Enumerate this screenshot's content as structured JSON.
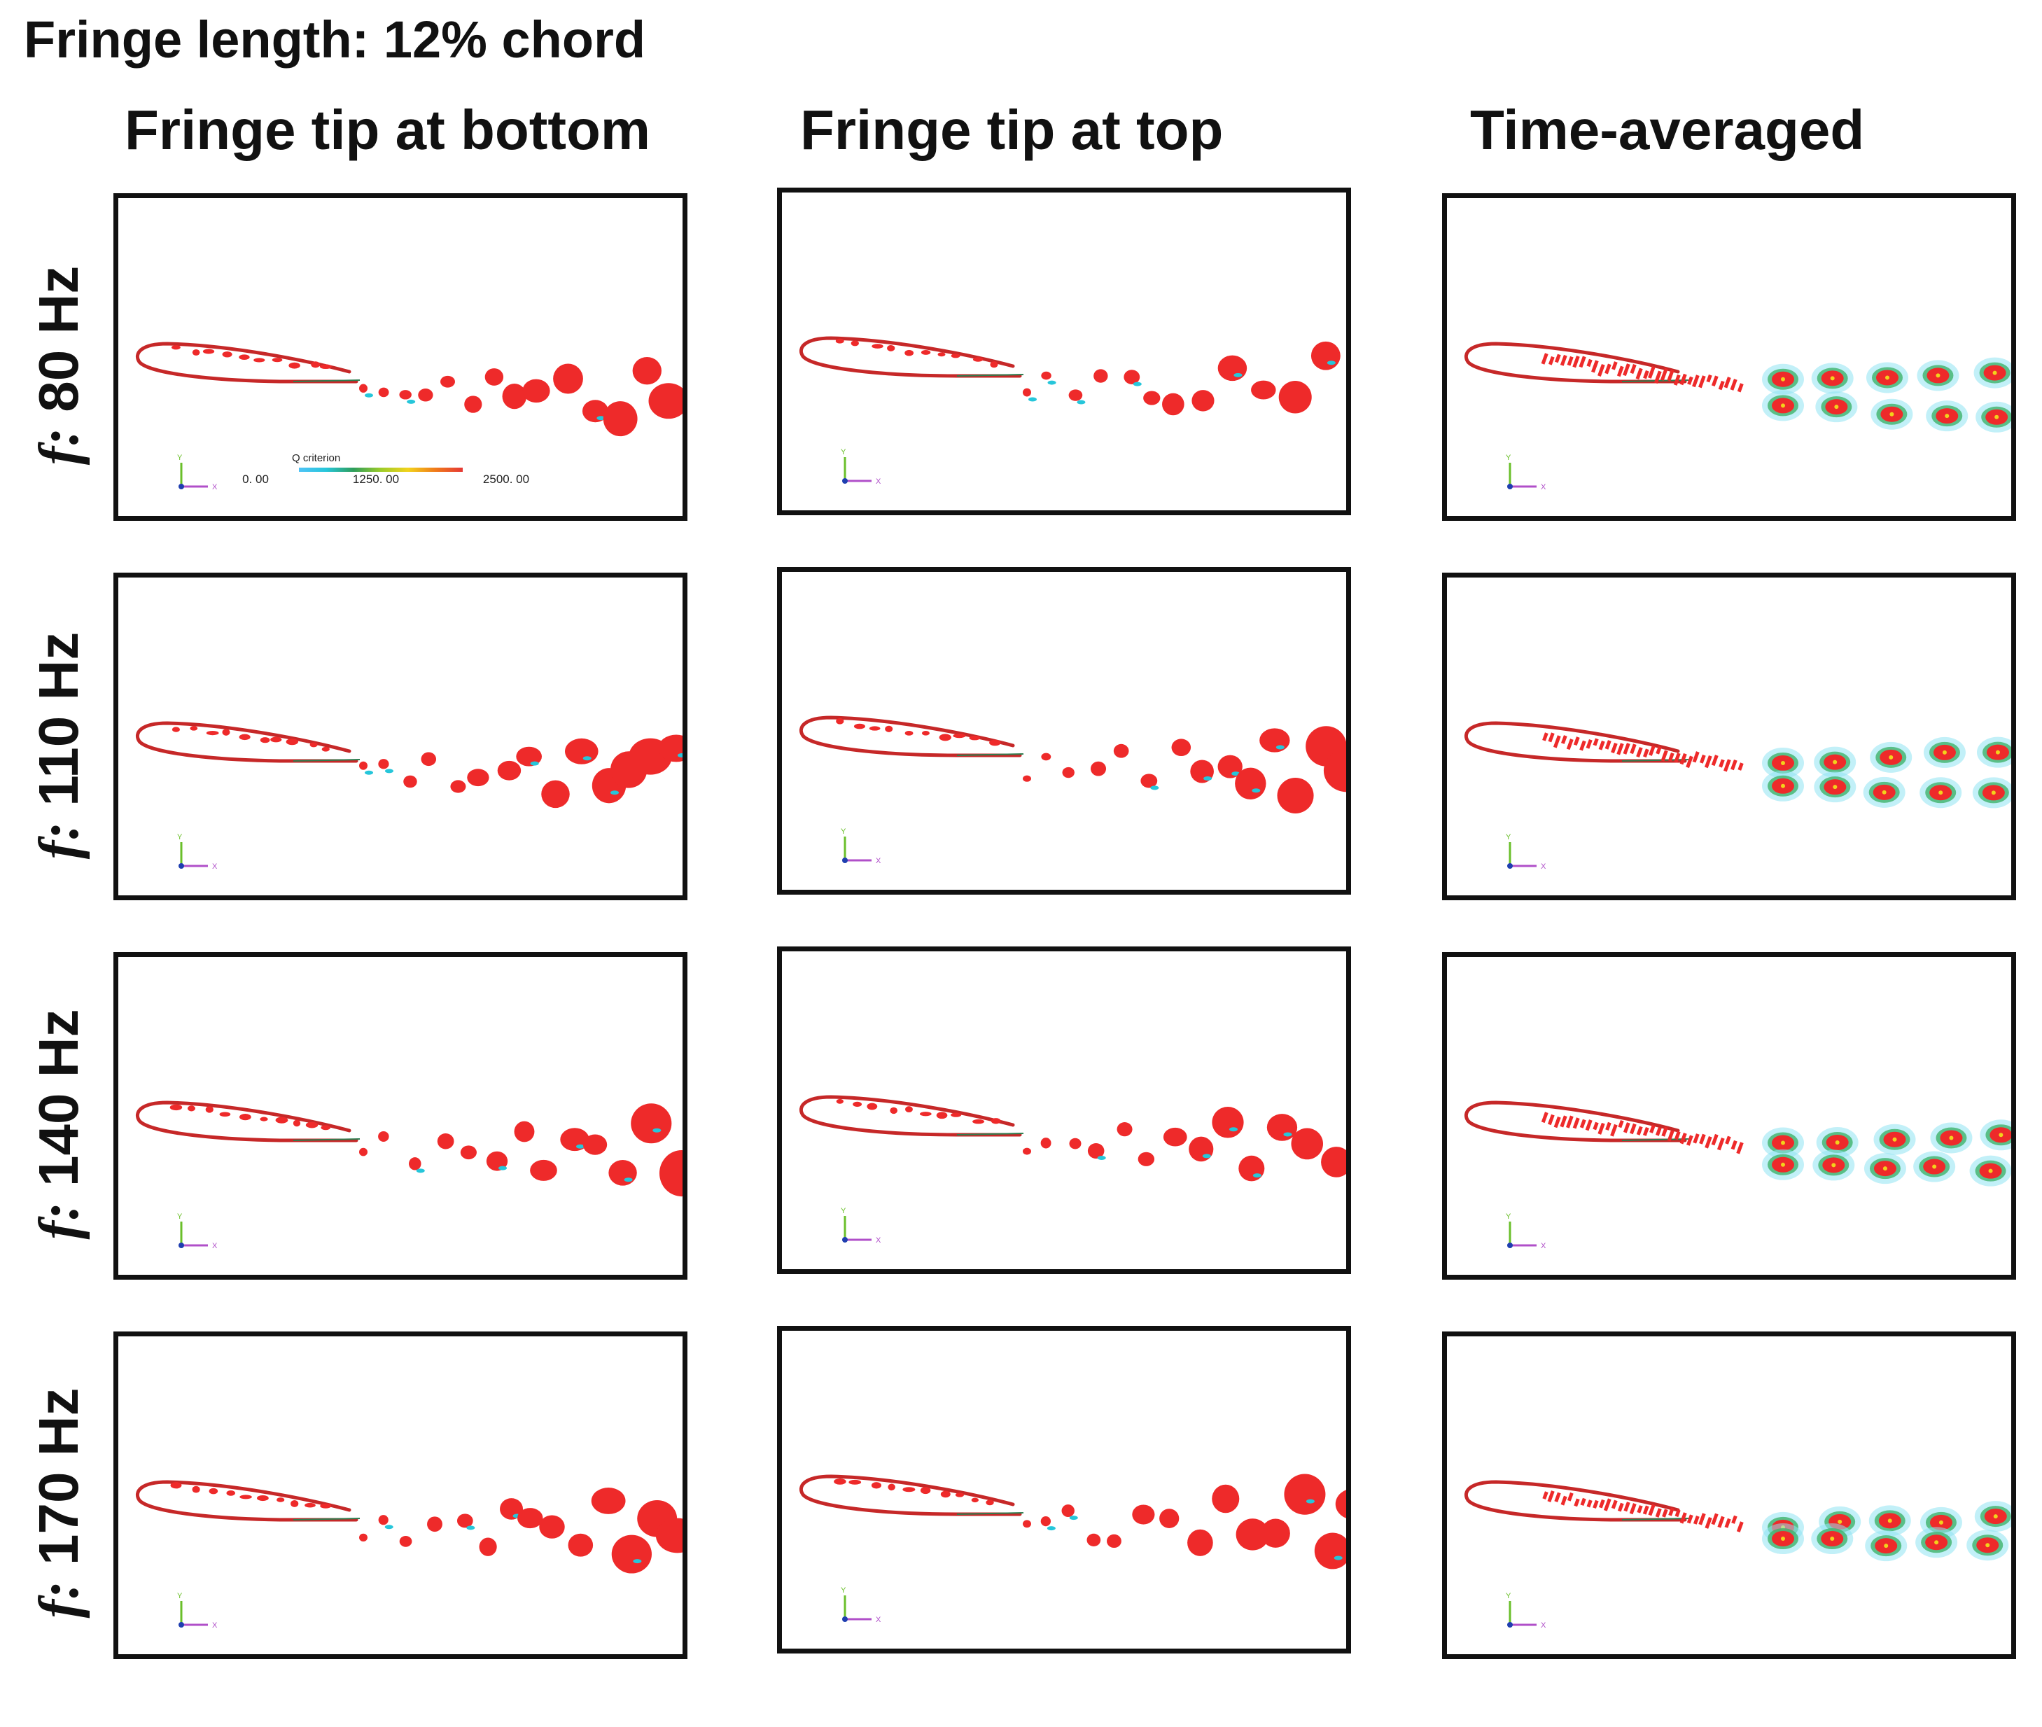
{
  "title": "Fringe length: 12% chord",
  "columns": [
    "Fringe tip at bottom",
    "Fringe tip at top",
    "Time-averaged"
  ],
  "rows": [
    {
      "prefix": "f:",
      "label": "80 Hz"
    },
    {
      "prefix": "f:",
      "label": "110 Hz"
    },
    {
      "prefix": "f:",
      "label": "140 Hz"
    },
    {
      "prefix": "f:",
      "label": "170 Hz"
    }
  ],
  "colorbar": {
    "title": "Q criterion",
    "ticks": [
      "0. 00",
      "1250. 00",
      "2500. 00"
    ],
    "colors": [
      "#4fc3f7",
      "#26c6da",
      "#2e9d5a",
      "#9ccc2a",
      "#f2d21b",
      "#f07a1a",
      "#e53935"
    ]
  },
  "axes_triad": {
    "y": "Y",
    "x": "X"
  },
  "colors": {
    "vortex": "#ee2a2a",
    "airfoil": "#c62828",
    "frame": "#111111"
  }
}
